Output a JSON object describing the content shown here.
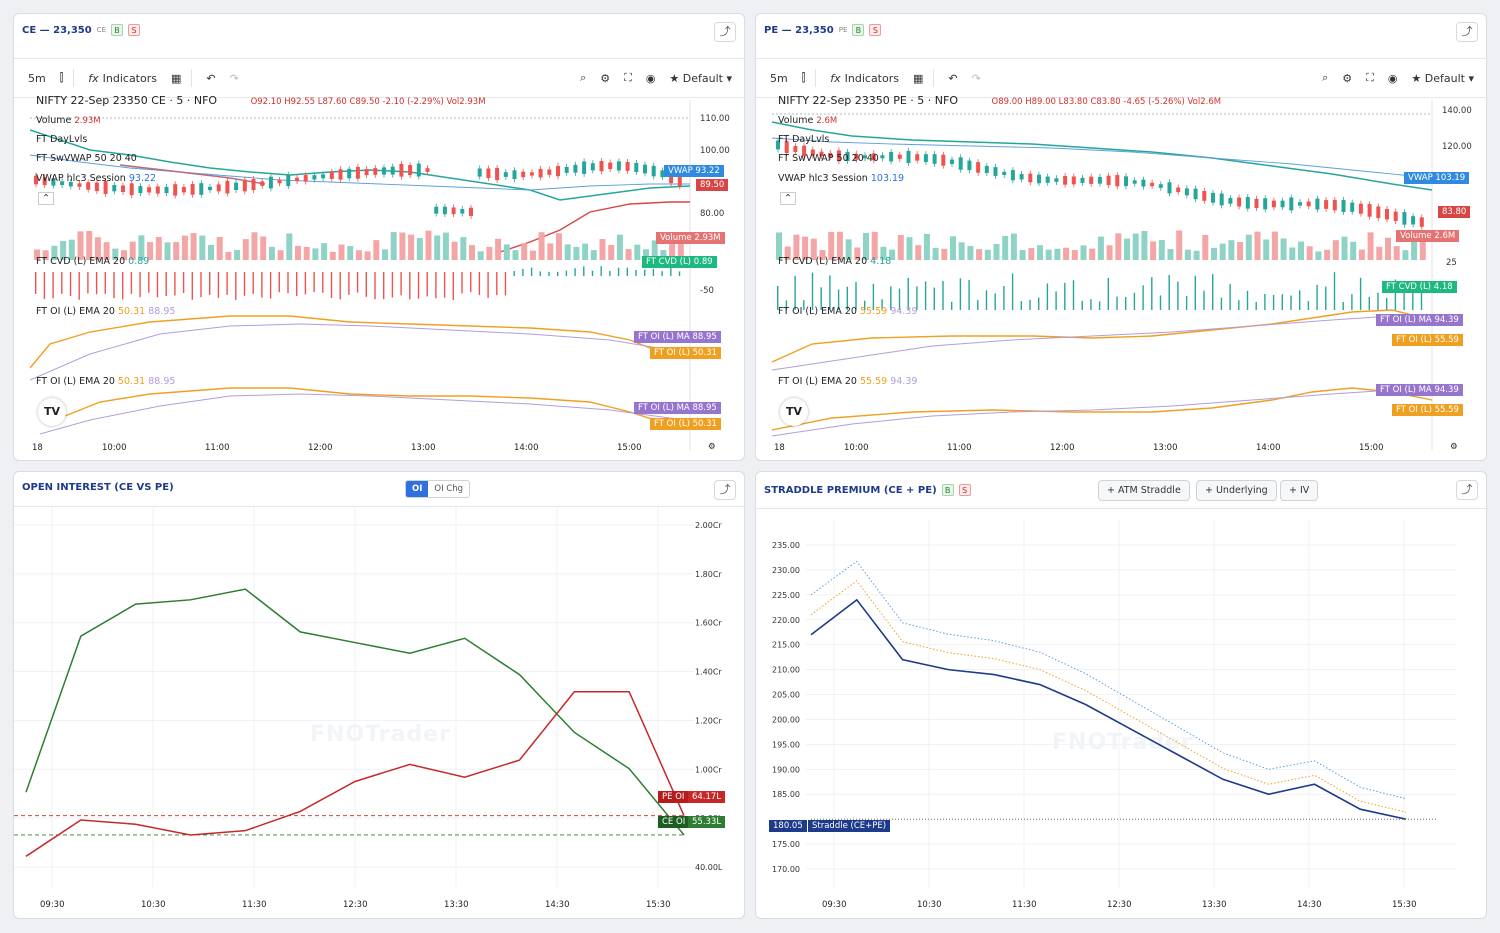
{
  "ce": {
    "title": "CE — 23,350",
    "tk": "CE",
    "b": "B",
    "s": "S",
    "interval": "5m",
    "indicators": "Indicators",
    "default": "★ Default ▾",
    "symbol": "NIFTY 22-Sep 23350 CE · 5 · NFO",
    "ohlc": "O92.10  H92.55  L87.60  C89.50  -2.10 (-2.29%)  Vol2.93M",
    "volume_label": "Volume",
    "volume_val": "2.93M",
    "daylvls": "FT DayLvls",
    "swvwap": "FT SwVWAP 50 20 40",
    "vwap_label": "VWAP hlc3 Session",
    "vwap_val": "93.22",
    "cvd_label": "FT CVD (L) EMA 20",
    "cvd_val": "0.89",
    "oi_label": "FT OI (L) EMA 20",
    "oi_v1": "50.31",
    "oi_v2": "88.95",
    "tags": {
      "vwap": "VWAP",
      "vwap_v": "93.22",
      "close": "89.50",
      "vol": "Volume",
      "vol_v": "2.93M",
      "cvd": "FT CVD (L)",
      "cvd_v": "0.89",
      "oima": "FT OI (L) MA",
      "oima_v": "88.95",
      "oil": "FT OI (L)",
      "oil_v": "50.31"
    },
    "price_ticks": [
      "110.00",
      "100.00",
      "80.00"
    ],
    "cvd_tick": "-50",
    "times": [
      "18",
      "10:00",
      "11:00",
      "12:00",
      "13:00",
      "14:00",
      "15:00"
    ]
  },
  "pe": {
    "title": "PE — 23,350",
    "tk": "PE",
    "b": "B",
    "s": "S",
    "interval": "5m",
    "indicators": "Indicators",
    "default": "★ Default ▾",
    "symbol": "NIFTY 22-Sep 23350 PE · 5 · NFO",
    "ohlc": "O89.00  H89.00  L83.80  C83.80  -4.65 (-5.26%)  Vol2.6M",
    "volume_label": "Volume",
    "volume_val": "2.6M",
    "daylvls": "FT DayLvls",
    "swvwap": "FT SwVWAP 50 20 40",
    "vwap_label": "VWAP hlc3 Session",
    "vwap_val": "103.19",
    "cvd_label": "FT CVD (L) EMA 20",
    "cvd_val": "4.18",
    "oi_label": "FT OI (L) EMA 20",
    "oi_v1": "55.59",
    "oi_v2": "94.39",
    "tags": {
      "vwap": "VWAP",
      "vwap_v": "103.19",
      "close": "83.80",
      "vol": "Volume",
      "vol_v": "2.6M",
      "cvd": "FT CVD (L)",
      "cvd_v": "4.18",
      "oima": "FT OI (L) MA",
      "oima_v": "94.39",
      "oil": "FT OI (L)",
      "oil_v": "55.59"
    },
    "price_ticks": [
      "140.00",
      "120.00"
    ],
    "cvd_tick": "25",
    "times": [
      "18",
      "10:00",
      "11:00",
      "12:00",
      "13:00",
      "14:00",
      "15:00"
    ]
  },
  "oi": {
    "title": "OPEN INTEREST (CE VS PE)",
    "seg_on": "OI",
    "seg_off": "OI Chg",
    "watermark": "FNOTrader",
    "pe_tag": "PE OI",
    "pe_val": "64.17L",
    "ce_tag": "CE OI",
    "ce_val": "55.33L"
  },
  "straddle": {
    "title": "STRADDLE PREMIUM (CE + PE)",
    "b": "B",
    "s": "S",
    "btn_atm": "+ ATM Straddle",
    "btn_underlying": "+ Underlying",
    "btn_iv": "+ IV",
    "watermark": "FNOTrader",
    "price_tag": "180.05",
    "series_tag": "Straddle (CE+PE)"
  },
  "chart_data": [
    {
      "type": "line",
      "x": [
        "09:30",
        "10:00",
        "10:30",
        "11:00",
        "11:30",
        "12:00",
        "12:30",
        "13:00",
        "13:30",
        "14:00",
        "14:30",
        "15:00",
        "15:30"
      ],
      "ylim": [
        40,
        200
      ],
      "y_ticks": [
        "2.00Cr",
        "1.80Cr",
        "1.60Cr",
        "1.40Cr",
        "1.20Cr",
        "1.00Cr",
        "80.00L",
        "40.00L"
      ],
      "x_ticks": [
        "09:30",
        "10:30",
        "11:30",
        "12:30",
        "13:30",
        "14:30",
        "15:30"
      ],
      "series": [
        {
          "name": "CE OI",
          "color": "#2e7d32",
          "values": [
            75,
            148,
            163,
            165,
            170,
            150,
            145,
            140,
            147,
            130,
            103,
            86,
            55
          ]
        },
        {
          "name": "PE OI",
          "color": "#c62828",
          "values": [
            45,
            62,
            60,
            55,
            57,
            66,
            80,
            88,
            82,
            90,
            122,
            122,
            64
          ]
        }
      ]
    },
    {
      "type": "line",
      "x": [
        "09:15",
        "09:30",
        "10:00",
        "10:30",
        "11:00",
        "11:30",
        "12:00",
        "12:30",
        "13:00",
        "13:30",
        "14:00",
        "14:30",
        "15:00",
        "15:30"
      ],
      "ylim": [
        168,
        237
      ],
      "y_ticks": [
        "235.00",
        "230.00",
        "225.00",
        "220.00",
        "215.00",
        "210.00",
        "205.00",
        "200.00",
        "195.00",
        "190.00",
        "185.00",
        "175.00",
        "170.00"
      ],
      "x_ticks": [
        "09:30",
        "10:30",
        "11:30",
        "12:30",
        "13:30",
        "14:30",
        "15:30"
      ],
      "series": [
        {
          "name": "Straddle (CE+PE)",
          "color": "#1e3a8a",
          "values": [
            217,
            224,
            212,
            210,
            209,
            207,
            203,
            198,
            193,
            188,
            185,
            187,
            182,
            180
          ]
        }
      ]
    }
  ]
}
